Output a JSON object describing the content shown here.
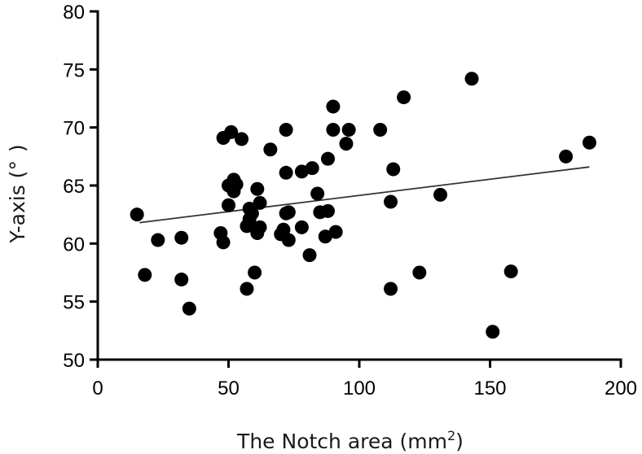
{
  "chart_data": {
    "type": "scatter",
    "xlabel": "The Notch area (mm",
    "xlabel_sup": "2",
    "xlabel_tail": ")",
    "ylabel": "Y-axis (°  )",
    "xlim": [
      0,
      200
    ],
    "ylim": [
      50,
      80
    ],
    "xticks": [
      0,
      50,
      100,
      150,
      200
    ],
    "yticks": [
      50,
      55,
      60,
      65,
      70,
      75,
      80
    ],
    "grid": false,
    "trendline": {
      "x": [
        16,
        188
      ],
      "y": [
        61.8,
        66.6
      ]
    },
    "x": [
      15,
      18,
      23,
      32,
      32,
      35,
      47,
      48,
      48,
      50,
      50,
      51,
      52,
      52,
      53,
      55,
      57,
      57,
      58,
      58,
      59,
      60,
      61,
      61,
      62,
      62,
      66,
      70,
      71,
      72,
      72,
      72,
      73,
      73,
      78,
      78,
      81,
      82,
      84,
      85,
      87,
      88,
      88,
      90,
      90,
      91,
      95,
      96,
      108,
      112,
      112,
      113,
      117,
      123,
      131,
      143,
      151,
      158,
      179,
      188
    ],
    "y": [
      62.5,
      57.3,
      60.3,
      60.5,
      56.9,
      54.4,
      60.9,
      60.1,
      69.1,
      63.3,
      65.0,
      69.6,
      65.5,
      64.5,
      65.1,
      69.0,
      56.1,
      61.5,
      62.1,
      63.0,
      62.6,
      57.5,
      60.9,
      64.7,
      63.5,
      61.4,
      68.1,
      60.8,
      61.2,
      62.6,
      66.1,
      69.8,
      62.7,
      60.3,
      66.2,
      61.4,
      59.0,
      66.5,
      64.3,
      62.7,
      60.6,
      62.8,
      67.3,
      71.8,
      69.8,
      61.0,
      68.6,
      69.8,
      69.8,
      63.6,
      56.1,
      66.4,
      72.6,
      57.5,
      64.2,
      74.2,
      52.4,
      57.6,
      67.5,
      68.7
    ]
  }
}
